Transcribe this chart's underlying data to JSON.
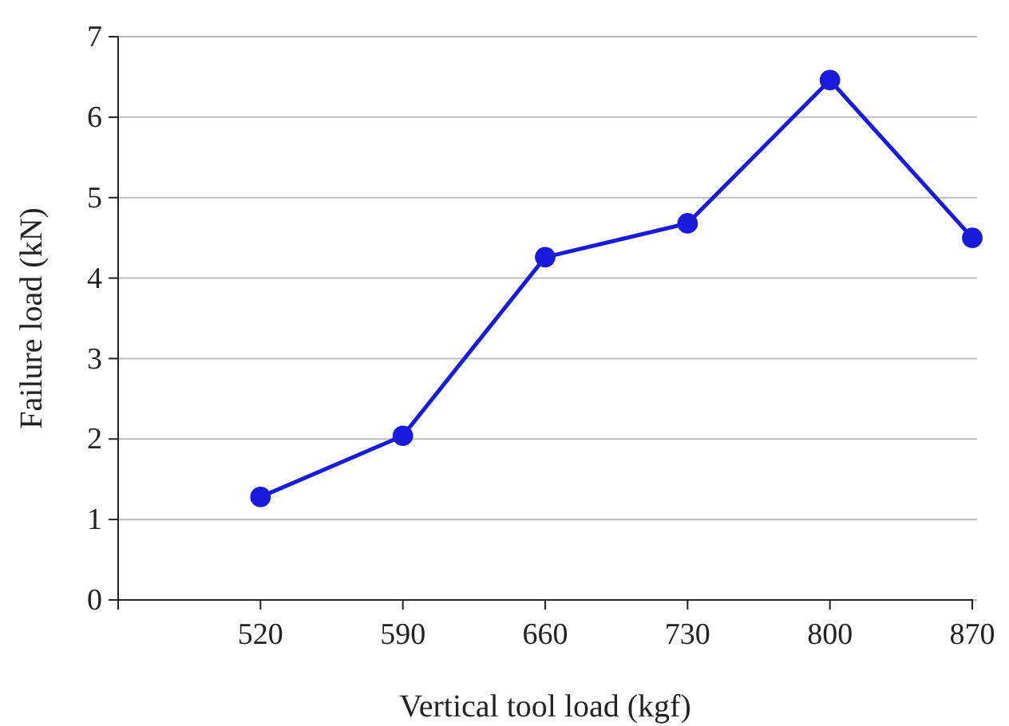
{
  "chart_data": {
    "type": "line",
    "xlabel": "Vertical tool load (kgf)",
    "ylabel": "Failure load (kN)",
    "x": [
      520,
      590,
      660,
      730,
      800,
      870
    ],
    "series": [
      {
        "color": "#1a1adc",
        "values": [
          1.28,
          2.04,
          4.26,
          4.68,
          6.46,
          4.5
        ]
      }
    ],
    "xlim": [
      450,
      870
    ],
    "xticks": [
      {
        "value": 450,
        "label": null
      },
      520,
      590,
      660,
      730,
      800,
      870
    ],
    "ylim": [
      0,
      7
    ],
    "yticks": [
      0,
      1,
      2,
      3,
      4,
      5,
      6,
      7
    ],
    "grid": "y",
    "marker": "circle",
    "line_style": "solid"
  }
}
